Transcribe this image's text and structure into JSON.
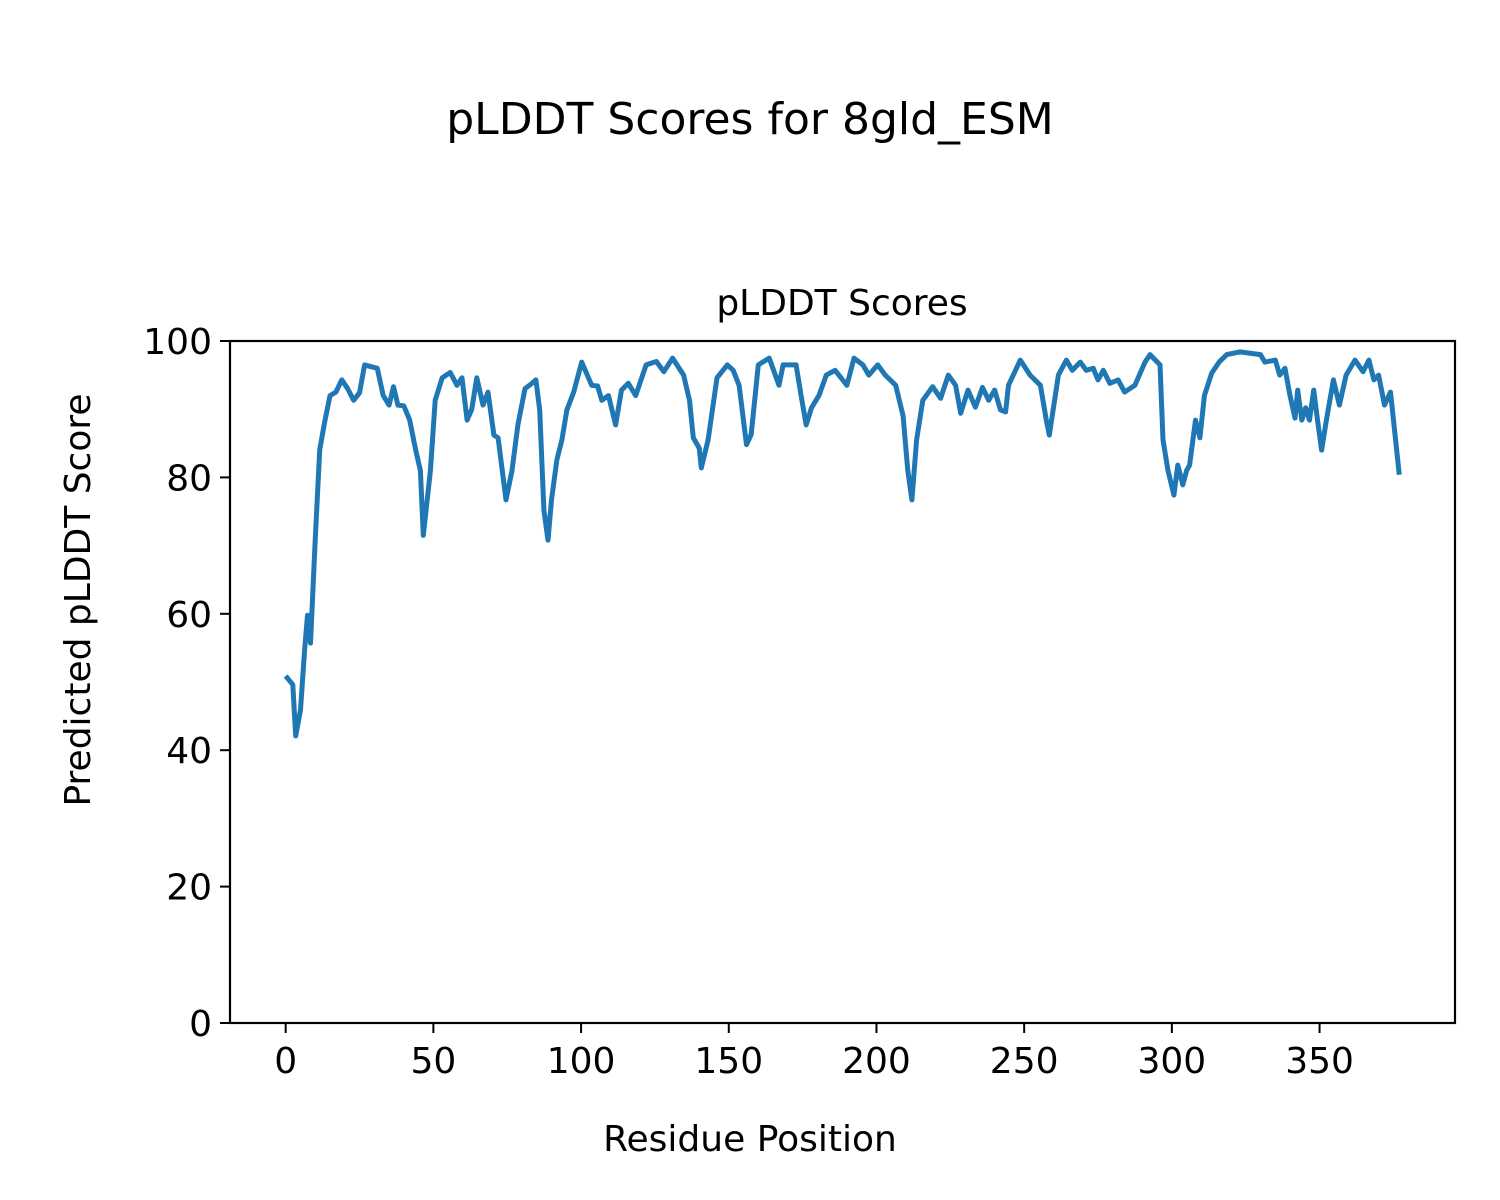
{
  "figure_title": "pLDDT Scores for 8gld_ESM",
  "chart_data": {
    "type": "line",
    "title": "pLDDT Scores",
    "xlabel": "Residue Position",
    "ylabel": "Predicted pLDDT Score",
    "xlim": [
      -18.85,
      395.85
    ],
    "ylim": [
      0,
      100
    ],
    "xticks": [
      0,
      50,
      100,
      150,
      200,
      250,
      300,
      350
    ],
    "yticks": [
      0,
      20,
      40,
      60,
      80,
      100
    ],
    "xtick_labels": [
      "0",
      "50",
      "100",
      "150",
      "200",
      "250",
      "300",
      "350"
    ],
    "ytick_labels": [
      "0",
      "20",
      "40",
      "60",
      "80",
      "100"
    ],
    "grid": false,
    "series": [
      {
        "name": "pLDDT",
        "color": "#1f77b4",
        "points": [
          [
            0,
            50.9
          ],
          [
            2.4,
            49.6
          ],
          [
            3.4,
            42.1
          ],
          [
            5,
            45.9
          ],
          [
            6.4,
            54.7
          ],
          [
            7.4,
            59.8
          ],
          [
            8.4,
            55.7
          ],
          [
            10,
            70.8
          ],
          [
            11.5,
            84
          ],
          [
            13,
            87.7
          ],
          [
            15,
            92
          ],
          [
            17,
            92.5
          ],
          [
            19,
            94.3
          ],
          [
            21,
            93
          ],
          [
            23,
            91.3
          ],
          [
            25,
            92.4
          ],
          [
            26.7,
            96.5
          ],
          [
            31,
            96
          ],
          [
            33,
            92
          ],
          [
            35,
            90.6
          ],
          [
            36.5,
            93.3
          ],
          [
            38,
            90.6
          ],
          [
            40,
            90.5
          ],
          [
            42,
            88.4
          ],
          [
            44,
            84
          ],
          [
            45.6,
            81
          ],
          [
            46.6,
            71.5
          ],
          [
            49,
            81
          ],
          [
            50.6,
            91.3
          ],
          [
            53,
            94.6
          ],
          [
            55.7,
            95.4
          ],
          [
            58,
            93.5
          ],
          [
            59.7,
            94.6
          ],
          [
            61.4,
            88.4
          ],
          [
            63,
            90
          ],
          [
            64.7,
            94.6
          ],
          [
            66.8,
            90.6
          ],
          [
            68.5,
            92.5
          ],
          [
            70.5,
            86.2
          ],
          [
            71.9,
            85.8
          ],
          [
            74.6,
            76.7
          ],
          [
            76.6,
            81
          ],
          [
            78.6,
            87.7
          ],
          [
            81,
            93
          ],
          [
            83.4,
            93.8
          ],
          [
            84.7,
            94.3
          ],
          [
            86,
            89.9
          ],
          [
            87.4,
            75.2
          ],
          [
            88.8,
            70.8
          ],
          [
            90,
            76.7
          ],
          [
            91.8,
            82.6
          ],
          [
            93.5,
            85.5
          ],
          [
            95.2,
            89.9
          ],
          [
            97.5,
            92.5
          ],
          [
            100.2,
            96.9
          ],
          [
            103.6,
            93.5
          ],
          [
            105.6,
            93.4
          ],
          [
            107,
            91.3
          ],
          [
            109.3,
            92
          ],
          [
            111.7,
            87.7
          ],
          [
            113.7,
            92.8
          ],
          [
            116,
            93.8
          ],
          [
            118.5,
            92
          ],
          [
            122,
            96.5
          ],
          [
            125.5,
            97
          ],
          [
            128,
            95.5
          ],
          [
            131,
            97.5
          ],
          [
            134.7,
            95
          ],
          [
            136.7,
            91.3
          ],
          [
            138,
            85.8
          ],
          [
            140,
            84.3
          ],
          [
            140.7,
            81.4
          ],
          [
            143,
            85.5
          ],
          [
            146,
            94.6
          ],
          [
            149.5,
            96.5
          ],
          [
            151.5,
            95.7
          ],
          [
            153.5,
            93.5
          ],
          [
            156,
            84.8
          ],
          [
            157.6,
            86.3
          ],
          [
            160,
            96.5
          ],
          [
            163.7,
            97.5
          ],
          [
            167,
            93.5
          ],
          [
            168.4,
            96.5
          ],
          [
            172.8,
            96.5
          ],
          [
            174.5,
            92
          ],
          [
            176.2,
            87.7
          ],
          [
            178,
            90.2
          ],
          [
            180.5,
            92
          ],
          [
            183,
            95
          ],
          [
            186,
            95.7
          ],
          [
            188,
            94.6
          ],
          [
            190,
            93.5
          ],
          [
            192.4,
            97.5
          ],
          [
            195.4,
            96.5
          ],
          [
            197.4,
            95
          ],
          [
            200.4,
            96.5
          ],
          [
            203,
            95
          ],
          [
            206.5,
            93.5
          ],
          [
            209,
            89
          ],
          [
            210.6,
            81
          ],
          [
            212,
            76.7
          ],
          [
            213.6,
            85.5
          ],
          [
            215.7,
            91.3
          ],
          [
            219,
            93.3
          ],
          [
            221.7,
            91.6
          ],
          [
            224.3,
            95
          ],
          [
            226.8,
            93.5
          ],
          [
            228.5,
            89.4
          ],
          [
            231,
            92.8
          ],
          [
            233.5,
            90.3
          ],
          [
            235.9,
            93.2
          ],
          [
            238,
            91.3
          ],
          [
            240,
            92.8
          ],
          [
            242,
            89.9
          ],
          [
            243.7,
            89.6
          ],
          [
            244.7,
            93.5
          ],
          [
            248.7,
            97.2
          ],
          [
            252,
            95
          ],
          [
            255.5,
            93.5
          ],
          [
            257.5,
            88.4
          ],
          [
            258.5,
            86.2
          ],
          [
            261.6,
            95
          ],
          [
            264.3,
            97.2
          ],
          [
            266.3,
            95.7
          ],
          [
            269,
            96.9
          ],
          [
            271,
            95.7
          ],
          [
            273.4,
            96
          ],
          [
            275,
            94.3
          ],
          [
            276.8,
            95.7
          ],
          [
            279,
            93.8
          ],
          [
            281.8,
            94.3
          ],
          [
            284,
            92.5
          ],
          [
            287.5,
            93.5
          ],
          [
            290.9,
            96.9
          ],
          [
            292.6,
            98
          ],
          [
            296,
            96.5
          ],
          [
            297,
            85.5
          ],
          [
            298.7,
            81
          ],
          [
            300.7,
            77.4
          ],
          [
            302,
            81.8
          ],
          [
            303.7,
            78.9
          ],
          [
            305,
            81
          ],
          [
            306,
            81.8
          ],
          [
            308,
            88.4
          ],
          [
            309.5,
            85.8
          ],
          [
            311,
            92
          ],
          [
            313.5,
            95.3
          ],
          [
            316,
            96.9
          ],
          [
            318.6,
            98
          ],
          [
            323,
            98.4
          ],
          [
            330,
            98
          ],
          [
            331.5,
            96.9
          ],
          [
            335,
            97.2
          ],
          [
            336.5,
            95
          ],
          [
            338.3,
            96
          ],
          [
            340,
            92
          ],
          [
            341.7,
            88.7
          ],
          [
            342.6,
            92.8
          ],
          [
            344,
            88.4
          ],
          [
            345.3,
            90.2
          ],
          [
            346.6,
            88.4
          ],
          [
            348,
            92.8
          ],
          [
            349.3,
            88.4
          ],
          [
            350.7,
            84
          ],
          [
            352.3,
            88.4
          ],
          [
            354.7,
            94.3
          ],
          [
            356.7,
            90.6
          ],
          [
            359,
            95
          ],
          [
            362,
            97.2
          ],
          [
            364.7,
            95.5
          ],
          [
            366.7,
            97.2
          ],
          [
            368.4,
            94.3
          ],
          [
            370,
            95
          ],
          [
            372,
            90.6
          ],
          [
            374,
            92.5
          ],
          [
            377,
            80.4
          ]
        ]
      }
    ]
  }
}
